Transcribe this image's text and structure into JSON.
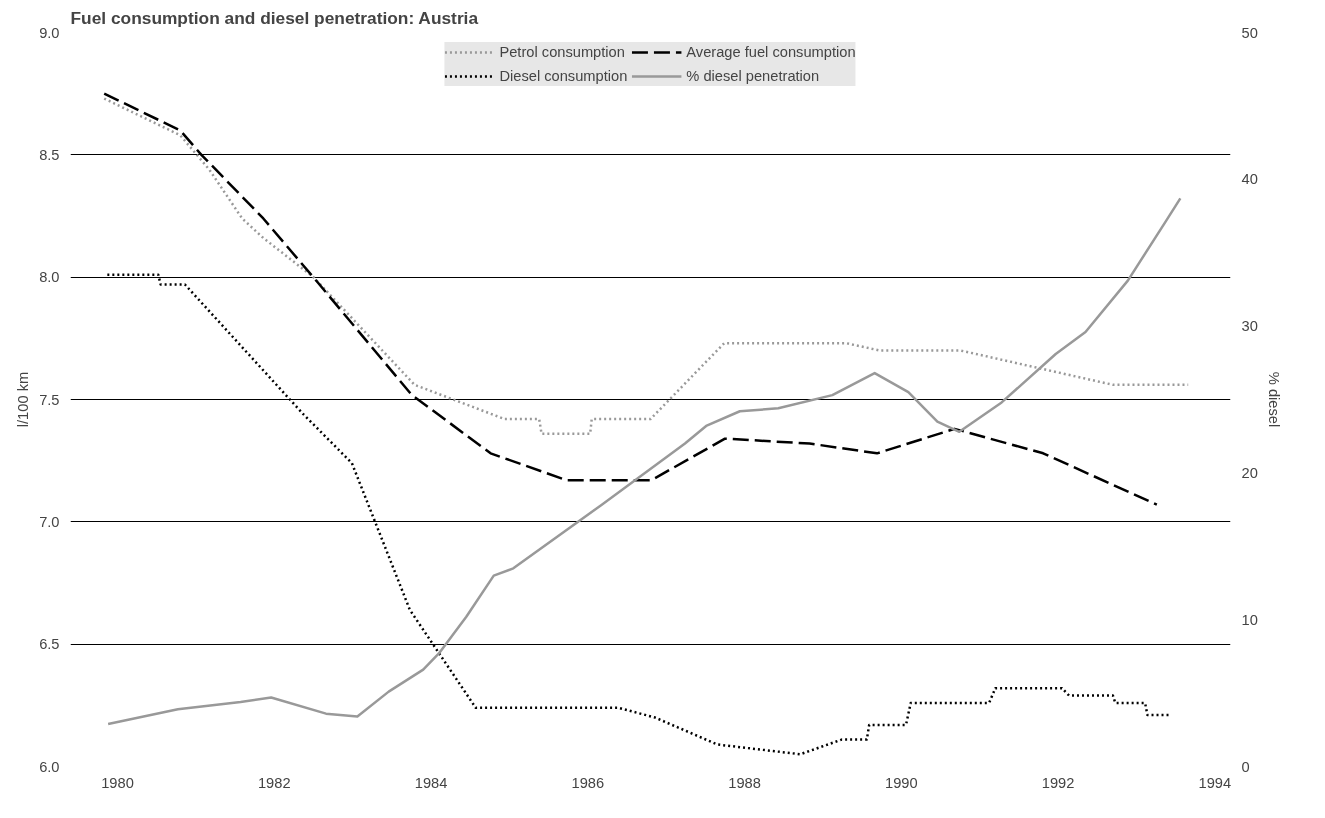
{
  "chart_data": {
    "type": "line",
    "title": "Fuel consumption and diesel penetration: Austria",
    "ylabel": "l/100 km",
    "y2label": "% diesel",
    "xlim": [
      1979.4,
      1994.2
    ],
    "xticks": [
      1980,
      1982,
      1984,
      1986,
      1988,
      1990,
      1992,
      1994
    ],
    "ylim": [
      6.0,
      9.0
    ],
    "yticks": [
      {
        "value": 6.0,
        "label": "6.0"
      },
      {
        "value": 6.5,
        "label": "6.5"
      },
      {
        "value": 7.0,
        "label": "7.0"
      },
      {
        "value": 7.5,
        "label": "7.5"
      },
      {
        "value": 8.0,
        "label": "8.0"
      },
      {
        "value": 8.5,
        "label": "8.5"
      },
      {
        "value": 9.0,
        "label": "9.0"
      }
    ],
    "y2lim": [
      0,
      50
    ],
    "y2ticks": [
      0,
      10,
      20,
      30,
      40,
      50
    ],
    "grid": "y",
    "legend": "top",
    "marker": "none",
    "series": [
      {
        "name": "Petrol consumption",
        "color": "#999999",
        "line_style": "dotted",
        "x": [
          1979.83,
          1980.8,
          1981.17,
          1981.59,
          1981.86,
          1982.5,
          1983.79,
          1984.94,
          1985.38,
          1985.41,
          1986.03,
          1986.05,
          1986.8,
          1987.74,
          1989.3,
          1989.73,
          1990.76,
          1992.7,
          1993.66
        ],
        "values": [
          8.73,
          8.58,
          8.44,
          8.24,
          8.16,
          8.0,
          7.56,
          7.42,
          7.42,
          7.36,
          7.36,
          7.42,
          7.42,
          7.73,
          7.73,
          7.7,
          7.7,
          7.56,
          7.56
        ]
      },
      {
        "name": "Diesel consumption",
        "color": "#000000",
        "line_style": "dotted",
        "x": [
          1979.87,
          1980.52,
          1980.55,
          1980.86,
          1982.37,
          1982.99,
          1983.73,
          1984.57,
          1986.39,
          1986.86,
          1987.65,
          1988.71,
          1989.24,
          1989.56,
          1989.59,
          1990.06,
          1990.12,
          1991.12,
          1991.2,
          1992.05,
          1992.14,
          1992.7,
          1992.73,
          1993.11,
          1993.14,
          1993.43
        ],
        "values": [
          8.01,
          8.01,
          7.97,
          7.97,
          7.44,
          7.24,
          6.64,
          6.24,
          6.24,
          6.2,
          6.09,
          6.05,
          6.11,
          6.11,
          6.17,
          6.17,
          6.26,
          6.26,
          6.32,
          6.32,
          6.29,
          6.29,
          6.26,
          6.26,
          6.21,
          6.21
        ]
      },
      {
        "name": "Average fuel consumption",
        "color": "#000000",
        "line_style": "dashed",
        "x": [
          1979.83,
          1980.8,
          1981.07,
          1981.86,
          1982.55,
          1983.75,
          1984.76,
          1985.73,
          1986.81,
          1987.75,
          1988.83,
          1989.69,
          1990.68,
          1991.81,
          1993.26
        ],
        "values": [
          8.75,
          8.6,
          8.5,
          8.24,
          7.98,
          7.52,
          7.28,
          7.17,
          7.17,
          7.34,
          7.32,
          7.28,
          7.38,
          7.28,
          7.07
        ]
      },
      {
        "name": "% diesel penetration",
        "color": "#999999",
        "line_style": "solid",
        "axis": "y2",
        "x": [
          1979.88,
          1980.77,
          1981.57,
          1981.96,
          1982.66,
          1983.06,
          1983.46,
          1983.9,
          1984.1,
          1984.45,
          1984.8,
          1985.05,
          1986.17,
          1987.24,
          1987.51,
          1987.94,
          1988.43,
          1989.12,
          1989.66,
          1990.09,
          1990.46,
          1990.74,
          1991.28,
          1991.97,
          1992.35,
          1992.89,
          1993.37,
          1993.56
        ],
        "values": [
          2.9,
          3.9,
          4.4,
          4.7,
          3.6,
          3.4,
          5.1,
          6.6,
          7.7,
          10.2,
          13.0,
          13.5,
          17.8,
          22.0,
          23.2,
          24.2,
          24.4,
          25.3,
          26.8,
          25.5,
          23.5,
          22.8,
          24.8,
          28.1,
          29.6,
          33.1,
          37.1,
          38.7
        ]
      }
    ]
  }
}
